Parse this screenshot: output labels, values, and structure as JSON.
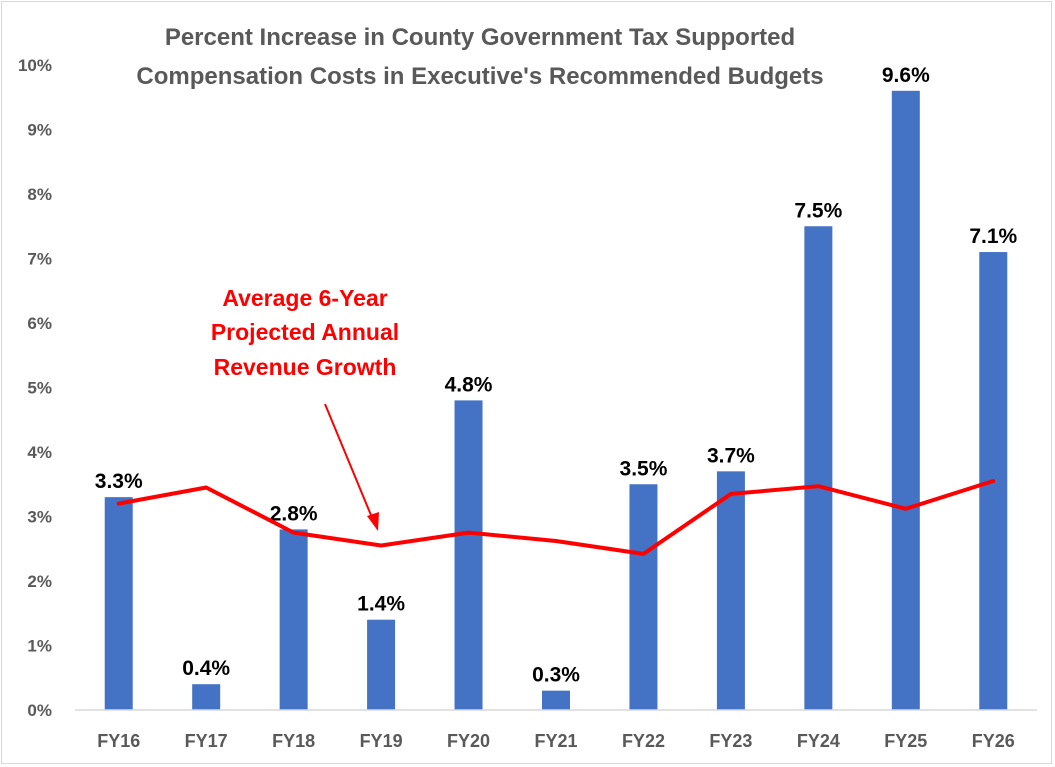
{
  "chart_data": {
    "type": "bar",
    "title": [
      "Percent Increase in County Government Tax Supported",
      "Compensation Costs in Executive's Recommended Budgets"
    ],
    "categories": [
      "FY16",
      "FY17",
      "FY18",
      "FY19",
      "FY20",
      "FY21",
      "FY22",
      "FY23",
      "FY24",
      "FY25",
      "FY26"
    ],
    "series": [
      {
        "type": "bar",
        "values": [
          3.3,
          0.4,
          2.8,
          1.4,
          4.8,
          0.3,
          3.5,
          3.7,
          7.5,
          9.6,
          7.1
        ],
        "data_labels": [
          "3.3%",
          "0.4%",
          "2.8%",
          "1.4%",
          "4.8%",
          "0.3%",
          "3.5%",
          "3.7%",
          "7.5%",
          "9.6%",
          "7.1%"
        ],
        "color": "#4472c4"
      },
      {
        "type": "line",
        "values": [
          3.2,
          3.45,
          2.75,
          2.55,
          2.75,
          2.62,
          2.42,
          3.35,
          3.47,
          3.12,
          3.55
        ],
        "color": "#ff0000"
      }
    ],
    "y_ticks": [
      "0%",
      "1%",
      "2%",
      "3%",
      "4%",
      "5%",
      "6%",
      "7%",
      "8%",
      "9%",
      "10%"
    ],
    "ylim": [
      0,
      10
    ],
    "xlabel": "",
    "ylabel": "",
    "grid": false,
    "legend": "none",
    "annotation": {
      "lines": [
        "Average 6-Year",
        "Projected Annual",
        "Revenue Growth"
      ],
      "color": "#ff0000"
    }
  }
}
